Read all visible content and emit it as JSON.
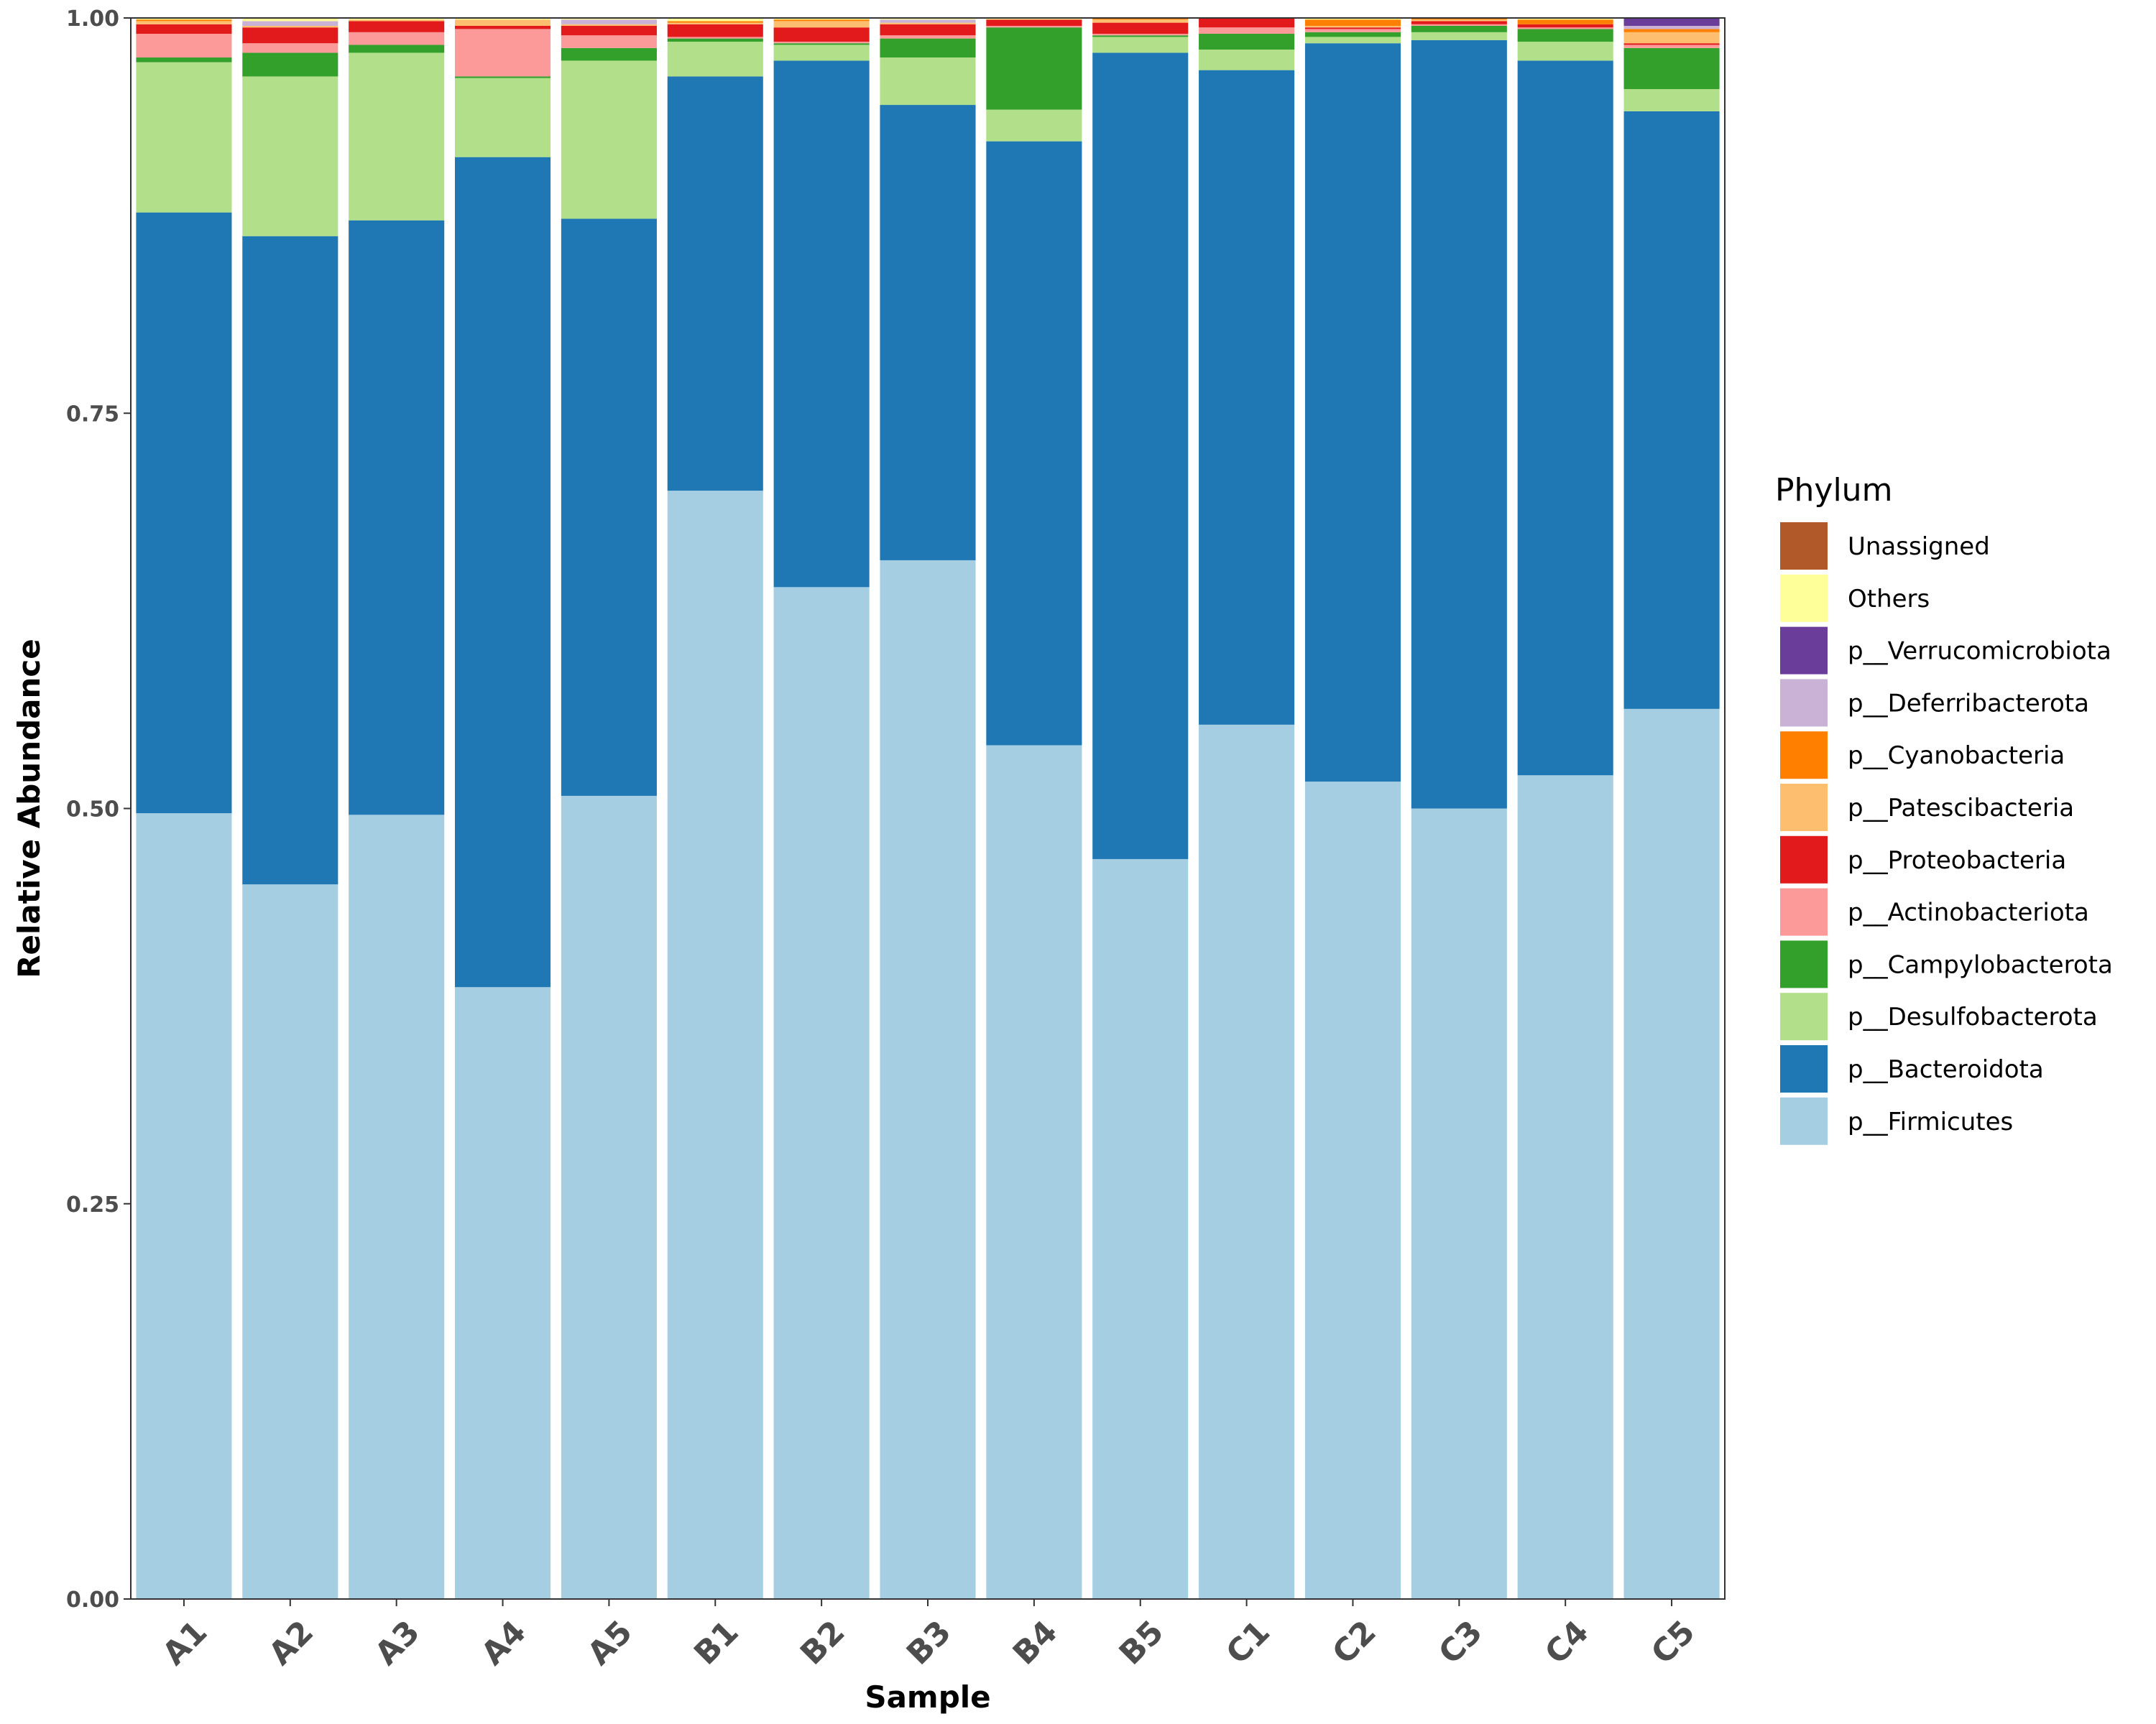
{
  "chart_data": {
    "type": "bar",
    "stacked": true,
    "title": "",
    "xlabel": "Sample",
    "ylabel": "Relative Abundance",
    "ylim": [
      0,
      1
    ],
    "yticks": [
      "0.00",
      "0.25",
      "0.50",
      "0.75",
      "1.00"
    ],
    "grid": false,
    "legend_position": "right",
    "legend_title": "Phylum",
    "categories": [
      "A1",
      "A2",
      "A3",
      "A4",
      "A5",
      "B1",
      "B2",
      "B3",
      "B4",
      "B5",
      "C1",
      "C2",
      "C3",
      "C4",
      "C5"
    ],
    "series": [
      {
        "name": "p__Firmicutes",
        "color": "#a6cee3",
        "values": [
          0.497,
          0.452,
          0.496,
          0.387,
          0.508,
          0.701,
          0.64,
          0.657,
          0.54,
          0.468,
          0.553,
          0.517,
          0.5,
          0.521,
          0.563
        ]
      },
      {
        "name": "p__Bacteroidota",
        "color": "#1f78b4",
        "values": [
          0.38,
          0.41,
          0.376,
          0.525,
          0.365,
          0.262,
          0.333,
          0.288,
          0.382,
          0.51,
          0.414,
          0.467,
          0.486,
          0.452,
          0.378
        ]
      },
      {
        "name": "p__Desulfobacterota",
        "color": "#b2df8a",
        "values": [
          0.095,
          0.101,
          0.106,
          0.05,
          0.1,
          0.022,
          0.01,
          0.03,
          0.02,
          0.01,
          0.013,
          0.004,
          0.005,
          0.012,
          0.014
        ]
      },
      {
        "name": "p__Campylobacterota",
        "color": "#33a02c",
        "values": [
          0.003,
          0.015,
          0.005,
          0.001,
          0.008,
          0.002,
          0.001,
          0.012,
          0.052,
          0.001,
          0.01,
          0.003,
          0.004,
          0.008,
          0.026
        ]
      },
      {
        "name": "p__Actinobacteriota",
        "color": "#fb9a99",
        "values": [
          0.015,
          0.006,
          0.008,
          0.03,
          0.008,
          0.001,
          0.001,
          0.002,
          0.001,
          0.001,
          0.004,
          0.002,
          0.001,
          0.001,
          0.002
        ]
      },
      {
        "name": "p__Proteobacteria",
        "color": "#e31a1c",
        "values": [
          0.006,
          0.01,
          0.007,
          0.002,
          0.006,
          0.008,
          0.009,
          0.007,
          0.004,
          0.007,
          0.006,
          0.001,
          0.002,
          0.002,
          0.001
        ]
      },
      {
        "name": "p__Patescibacteria",
        "color": "#fdbf6f",
        "values": [
          0.002,
          0.001,
          0.001,
          0.004,
          0.001,
          0.001,
          0.004,
          0.001,
          0.0,
          0.002,
          0.0,
          0.001,
          0.001,
          0.0,
          0.007
        ]
      },
      {
        "name": "p__Cyanobacteria",
        "color": "#ff7f00",
        "values": [
          0.001,
          0.0,
          0.0,
          0.0,
          0.0,
          0.001,
          0.001,
          0.0,
          0.0,
          0.001,
          0.0,
          0.004,
          0.001,
          0.003,
          0.002
        ]
      },
      {
        "name": "p__Deferribacterota",
        "color": "#cab2d6",
        "values": [
          0.0,
          0.003,
          0.0,
          0.0,
          0.003,
          0.0,
          0.0,
          0.002,
          0.0,
          0.0,
          0.0,
          0.0,
          0.0,
          0.0,
          0.002
        ]
      },
      {
        "name": "p__Verrucomicrobiota",
        "color": "#6a3d9a",
        "values": [
          0.0,
          0.0,
          0.0,
          0.0,
          0.0,
          0.0,
          0.0,
          0.0,
          0.0,
          0.0,
          0.0,
          0.0,
          0.0,
          0.0,
          0.006
        ]
      },
      {
        "name": "Others",
        "color": "#ffff99",
        "values": [
          0.001,
          0.002,
          0.001,
          0.001,
          0.001,
          0.002,
          0.001,
          0.001,
          0.001,
          0.0,
          0.0,
          0.001,
          0.0,
          0.001,
          0.0
        ]
      },
      {
        "name": "Unassigned",
        "color": "#b15928",
        "values": [
          0.0,
          0.0,
          0.0,
          0.0,
          0.0,
          0.0,
          0.002,
          0.0,
          0.0,
          0.0,
          0.0,
          0.0,
          0.0,
          0.0,
          0.0
        ]
      }
    ]
  }
}
